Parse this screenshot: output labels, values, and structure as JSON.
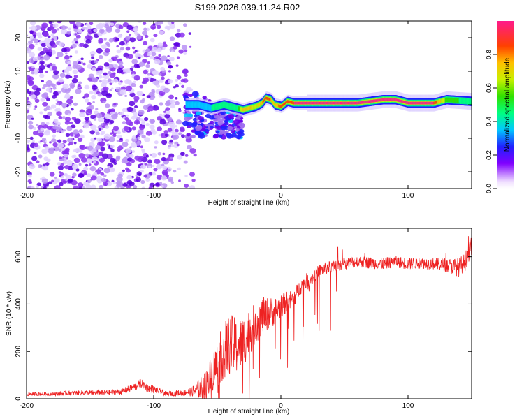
{
  "title": "S199.2026.039.11.24.R02",
  "colors": {
    "snr_line": "#ee2222",
    "scatter_base": "#7a00e6",
    "trace_core": "#ff1a1a",
    "trace_edge": "#00c8ff",
    "trace_mid": "#30e000"
  },
  "chart_data": [
    {
      "type": "heatmap",
      "title": "",
      "xlabel": "Height of straight line (km)",
      "ylabel": "Frequency (Hz)",
      "xlim": [
        -200,
        150
      ],
      "ylim": [
        -25,
        25
      ],
      "x_ticks": [
        -200,
        -100,
        0,
        100
      ],
      "x_tick_labels": [
        "-200",
        "-100",
        "0",
        "100"
      ],
      "y_ticks": [
        -20,
        -10,
        0,
        10,
        20
      ],
      "y_tick_labels": [
        "-20",
        "-10",
        "0",
        "10",
        "20"
      ],
      "noise_region": {
        "x_range": [
          -200,
          -75
        ],
        "y_range": [
          -25,
          25
        ],
        "amplitude": 0.2
      },
      "transition_region": {
        "x_range": [
          -75,
          -30
        ],
        "y_range": [
          -10,
          5
        ],
        "amplitude": 0.35
      },
      "trace": {
        "x": [
          -75,
          -65,
          -55,
          -45,
          -35,
          -30,
          -25,
          -20,
          -15,
          -12,
          -8,
          -5,
          0,
          5,
          10,
          20,
          40,
          60,
          80,
          90,
          95,
          100,
          110,
          120,
          130,
          150
        ],
        "y": [
          0,
          0,
          -1,
          0,
          -1,
          -1.5,
          -1,
          -0.5,
          0.5,
          2,
          1.5,
          0,
          -0.5,
          1,
          0.5,
          0.5,
          0.5,
          0.5,
          1.5,
          1.5,
          1,
          0.5,
          0.5,
          0.5,
          1.5,
          1
        ],
        "amplitude": [
          0.3,
          0.35,
          0.35,
          0.4,
          0.4,
          0.7,
          0.7,
          0.6,
          0.75,
          0.8,
          0.75,
          0.7,
          0.8,
          0.8,
          0.85,
          0.9,
          0.9,
          0.9,
          0.92,
          0.9,
          0.9,
          0.9,
          0.88,
          0.85,
          0.5,
          0.4
        ]
      },
      "colorbar": {
        "label": "Normalized spectral amplitude",
        "range": [
          0.0,
          1.0
        ],
        "ticks": [
          0.0,
          0.2,
          0.4,
          0.6,
          0.8
        ],
        "tick_labels": [
          "0.0",
          "0.2",
          "0.4",
          "0.6",
          "0.8"
        ]
      }
    },
    {
      "type": "line",
      "title": "",
      "xlabel": "Height of straight line (km)",
      "ylabel": "SNR (10 * v/v)",
      "xlim": [
        -200,
        150
      ],
      "ylim": [
        0,
        720
      ],
      "x_ticks": [
        -200,
        -100,
        0,
        100
      ],
      "x_tick_labels": [
        "-200",
        "-100",
        "0",
        "100"
      ],
      "y_ticks": [
        0,
        200,
        400,
        600
      ],
      "y_tick_labels": [
        "0",
        "200",
        "400",
        "600"
      ],
      "series": [
        {
          "name": "SNR",
          "x": [
            -200,
            -180,
            -160,
            -140,
            -125,
            -115,
            -110,
            -105,
            -100,
            -90,
            -80,
            -70,
            -60,
            -50,
            -45,
            -40,
            -35,
            -30,
            -25,
            -20,
            -15,
            -10,
            -5,
            0,
            5,
            10,
            15,
            20,
            25,
            30,
            40,
            50,
            60,
            70,
            80,
            90,
            100,
            110,
            120,
            130,
            140,
            145,
            150
          ],
          "y": [
            20,
            20,
            25,
            25,
            30,
            50,
            65,
            45,
            40,
            20,
            25,
            30,
            50,
            150,
            200,
            230,
            220,
            240,
            280,
            320,
            350,
            360,
            370,
            390,
            410,
            420,
            470,
            500,
            510,
            540,
            560,
            570,
            580,
            575,
            570,
            580,
            570,
            575,
            570,
            565,
            555,
            580,
            650
          ],
          "noise_amplitude": [
            8,
            8,
            10,
            12,
            12,
            18,
            20,
            18,
            15,
            10,
            12,
            20,
            60,
            100,
            120,
            130,
            120,
            110,
            100,
            90,
            80,
            70,
            60,
            50,
            45,
            40,
            35,
            30,
            30,
            28,
            25,
            25,
            25,
            25,
            25,
            25,
            25,
            25,
            25,
            30,
            40,
            40,
            40
          ]
        }
      ]
    }
  ]
}
